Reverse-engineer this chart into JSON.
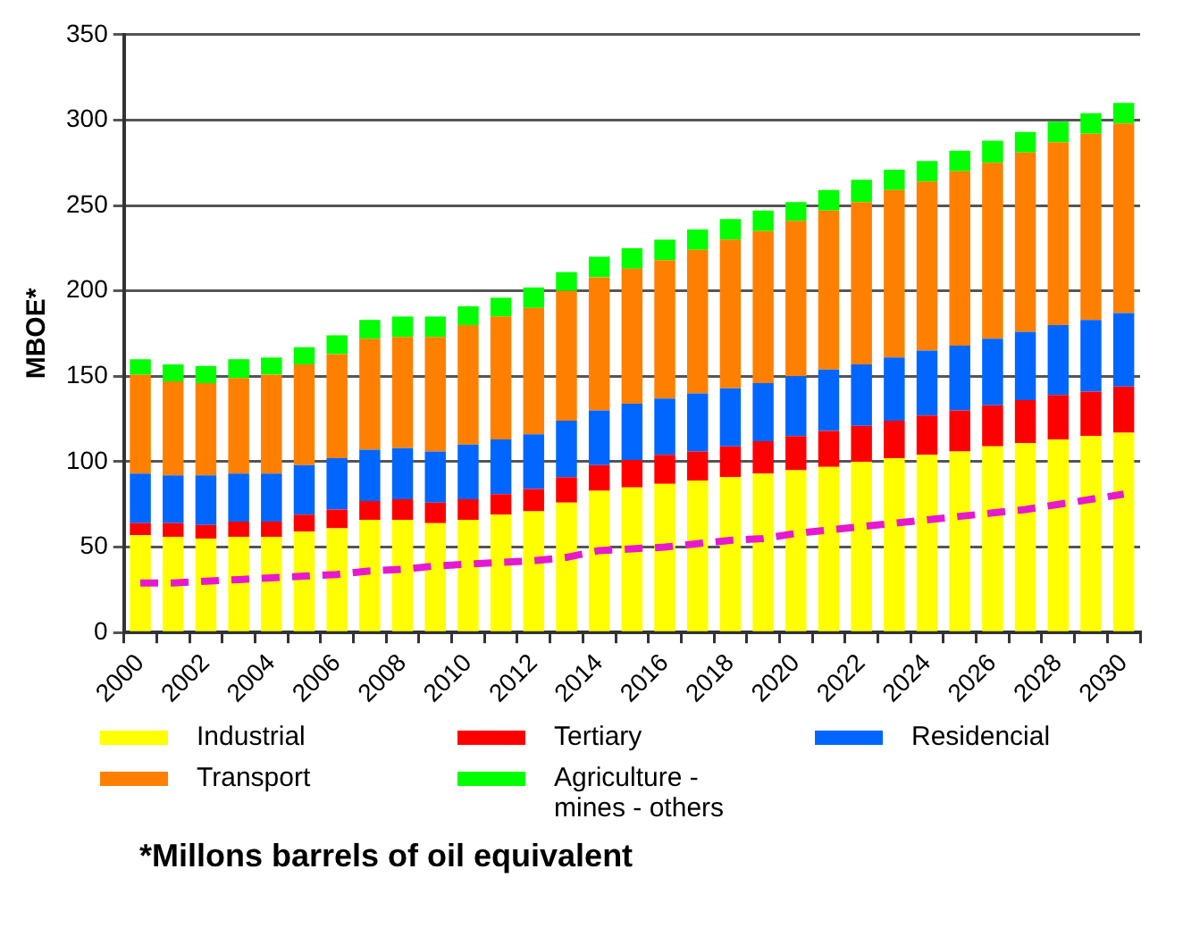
{
  "chart_data": {
    "type": "bar",
    "stacked": true,
    "ylabel": "MBOE*",
    "categories": [
      "2000",
      null,
      "2002",
      null,
      "2004",
      null,
      "2006",
      null,
      "2008",
      null,
      "2010",
      null,
      "2012",
      null,
      "2014",
      null,
      "2016",
      null,
      "2018",
      null,
      "2020",
      null,
      "2022",
      null,
      "2024",
      null,
      "2026",
      null,
      "2028",
      null,
      "2030"
    ],
    "series": [
      {
        "name": "Industrial",
        "color": "#ffff00",
        "values": [
          57,
          56,
          55,
          56,
          56,
          59,
          61,
          66,
          66,
          64,
          66,
          69,
          71,
          76,
          83,
          85,
          87,
          89,
          91,
          93,
          95,
          97,
          100,
          102,
          104,
          106,
          109,
          111,
          113,
          115,
          117
        ]
      },
      {
        "name": "Tertiary",
        "color": "#ff0000",
        "values": [
          7,
          8,
          8,
          9,
          9,
          10,
          11,
          11,
          12,
          12,
          12,
          12,
          13,
          15,
          15,
          16,
          17,
          17,
          18,
          19,
          20,
          21,
          21,
          22,
          23,
          24,
          24,
          25,
          26,
          26,
          27
        ]
      },
      {
        "name": "Residencial",
        "color": "#0066ff",
        "values": [
          29,
          28,
          29,
          28,
          28,
          29,
          30,
          30,
          30,
          30,
          32,
          32,
          32,
          33,
          32,
          33,
          33,
          34,
          34,
          34,
          35,
          36,
          36,
          37,
          38,
          38,
          39,
          40,
          41,
          42,
          43
        ]
      },
      {
        "name": "Transport",
        "color": "#ff8000",
        "values": [
          58,
          55,
          54,
          56,
          58,
          59,
          61,
          65,
          65,
          67,
          70,
          72,
          74,
          76,
          78,
          79,
          81,
          84,
          87,
          89,
          91,
          93,
          95,
          98,
          99,
          102,
          103,
          105,
          107,
          109,
          111
        ]
      },
      {
        "name": "Agriculture - mines - others",
        "color": "#00ff00",
        "values": [
          9,
          10,
          10,
          11,
          10,
          10,
          11,
          11,
          12,
          12,
          11,
          11,
          12,
          11,
          12,
          12,
          12,
          12,
          12,
          12,
          11,
          12,
          13,
          12,
          12,
          12,
          13,
          12,
          12,
          12,
          12
        ]
      },
      {
        "type": "line",
        "color": "#e619d1",
        "line_style": "dashed",
        "marker": "none",
        "values": [
          29,
          29,
          30,
          31,
          32,
          33,
          34,
          36,
          37,
          39,
          40,
          41,
          42,
          44,
          48,
          49,
          50,
          52,
          54,
          55,
          58,
          60,
          62,
          64,
          66,
          68,
          70,
          72,
          75,
          78,
          81
        ]
      }
    ],
    "ylim": [
      0,
      350
    ],
    "yticks": [
      0,
      50,
      100,
      150,
      200,
      250,
      300,
      350
    ],
    "grid": "y",
    "legend": "bottom",
    "annotations": [
      "*Millons barrels of oil equivalent"
    ]
  }
}
